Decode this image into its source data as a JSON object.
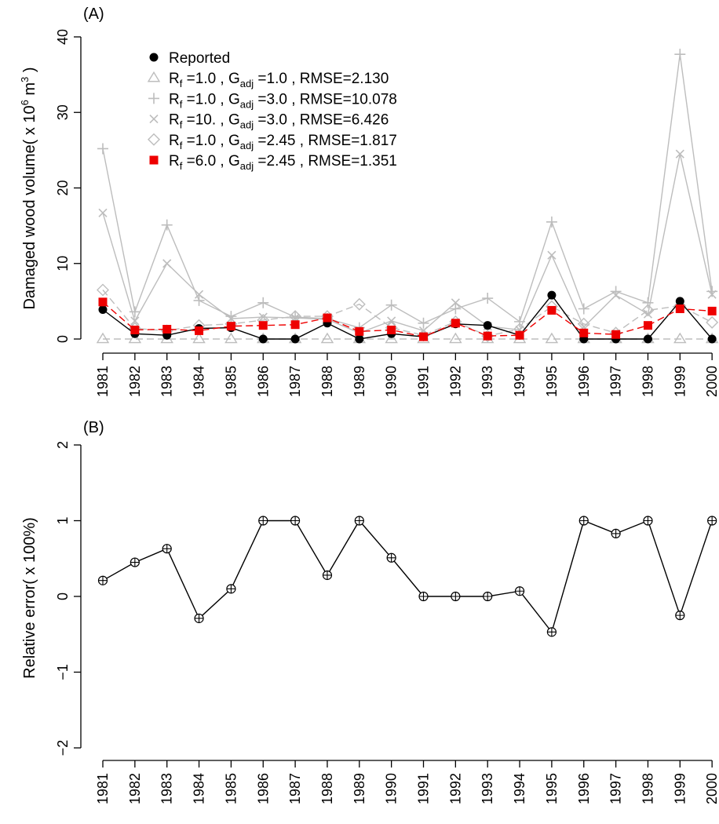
{
  "chart_data": [
    {
      "type": "line",
      "panel_label": "(A)",
      "ylabel_main": "Damaged wood volume( x 10",
      "ylabel_sup": "6",
      "ylabel_mid": " m",
      "ylabel_sup2": "3",
      "ylabel_end": " )",
      "xlabel": "",
      "ylim": [
        0,
        40
      ],
      "yticks": [
        "0",
        "10",
        "20",
        "30",
        "40"
      ],
      "categories": [
        "1981",
        "1982",
        "1983",
        "1984",
        "1985",
        "1986",
        "1987",
        "1988",
        "1989",
        "1990",
        "1991",
        "1992",
        "1993",
        "1994",
        "1995",
        "1996",
        "1997",
        "1998",
        "1999",
        "2000"
      ],
      "legend_position": "top-left",
      "series": [
        {
          "name": "Reported",
          "legend_parts": [
            "Reported"
          ],
          "marker": "filled-circle",
          "color": "#000000",
          "line_style": "solid",
          "values": [
            3.9,
            0.7,
            0.5,
            1.4,
            1.5,
            0.0,
            0.0,
            2.1,
            0.0,
            0.7,
            0.3,
            2.0,
            1.8,
            0.5,
            5.8,
            0.0,
            0.0,
            0.0,
            5.0,
            0.0
          ]
        },
        {
          "name": "Rf =1.0 , Gadj =1.0 , RMSE=2.130",
          "legend_parts": [
            "R",
            "f",
            " =1.0 , G",
            "adj",
            " =1.0 , RMSE=2.130"
          ],
          "marker": "triangle",
          "color": "#bdbdbd",
          "line_style": "dashed",
          "values": [
            0,
            0,
            0,
            0,
            0,
            0,
            0,
            0,
            0,
            0,
            0,
            0,
            0,
            0,
            0,
            0,
            0,
            0,
            0,
            0
          ]
        },
        {
          "name": "Rf =1.0 , Gadj =3.0 , RMSE=10.078",
          "legend_parts": [
            "R",
            "f",
            " =1.0 , G",
            "adj",
            " =3.0 , RMSE=10.078"
          ],
          "marker": "plus",
          "color": "#bdbdbd",
          "line_style": "solid",
          "values": [
            25.2,
            3.6,
            15.1,
            5.1,
            3.0,
            4.8,
            2.9,
            2.7,
            1.5,
            4.5,
            2.1,
            4.0,
            5.4,
            2.3,
            15.5,
            4.0,
            6.3,
            4.8,
            37.7,
            6.3
          ]
        },
        {
          "name": "Rf =10. , Gadj =3.0 , RMSE=6.426",
          "legend_parts": [
            "R",
            "f",
            " =10. , G",
            "adj",
            " =3.0 , RMSE=6.426"
          ],
          "marker": "x",
          "color": "#bdbdbd",
          "line_style": "solid",
          "values": [
            16.7,
            2.4,
            10.0,
            5.9,
            2.7,
            2.9,
            2.8,
            2.6,
            0.8,
            2.4,
            1.1,
            4.8,
            1.7,
            1.2,
            11.1,
            1.6,
            5.8,
            3.3,
            24.5,
            5.9
          ]
        },
        {
          "name": "Rf =1.0 , Gadj =2.45 , RMSE=1.817",
          "legend_parts": [
            "R",
            "f",
            " =1.0 , G",
            "adj",
            " =2.45 , RMSE=1.817"
          ],
          "marker": "diamond",
          "color": "#bdbdbd",
          "line_style": "dashed",
          "values": [
            6.5,
            1.4,
            1.1,
            1.8,
            2.0,
            2.5,
            3.0,
            3.0,
            4.6,
            1.5,
            0.5,
            2.3,
            0.4,
            1.3,
            4.3,
            2.0,
            0.8,
            3.8,
            4.4,
            2.2
          ]
        },
        {
          "name": "Rf =6.0 , Gadj =2.45 , RMSE=1.351",
          "legend_parts": [
            "R",
            "f",
            " =6.0 , G",
            "adj",
            " =2.45 , RMSE=1.351"
          ],
          "marker": "filled-square",
          "color": "#ee0000",
          "line_style": "dashed",
          "values": [
            4.9,
            1.2,
            1.3,
            1.1,
            1.7,
            1.8,
            1.9,
            2.8,
            1.0,
            1.2,
            0.3,
            2.1,
            0.4,
            0.5,
            3.8,
            0.8,
            0.6,
            1.8,
            4.0,
            3.7
          ]
        }
      ]
    },
    {
      "type": "line",
      "panel_label": "(B)",
      "ylabel": "Relative error( x 100%)",
      "xlabel": "",
      "ylim": [
        -2,
        2
      ],
      "yticks": [
        "−2",
        "−1",
        "0",
        "1",
        "2"
      ],
      "categories": [
        "1981",
        "1982",
        "1983",
        "1984",
        "1985",
        "1986",
        "1987",
        "1988",
        "1989",
        "1990",
        "1991",
        "1992",
        "1993",
        "1994",
        "1995",
        "1996",
        "1997",
        "1998",
        "1999",
        "2000"
      ],
      "series": [
        {
          "marker": "circle-plus",
          "color": "#000000",
          "line_style": "solid",
          "values": [
            0.21,
            0.45,
            0.63,
            -0.29,
            0.1,
            1.0,
            1.0,
            0.28,
            1.0,
            0.51,
            0.0,
            0.0,
            0.0,
            0.07,
            -0.47,
            1.0,
            0.83,
            1.0,
            -0.25,
            1.0
          ]
        }
      ]
    }
  ]
}
